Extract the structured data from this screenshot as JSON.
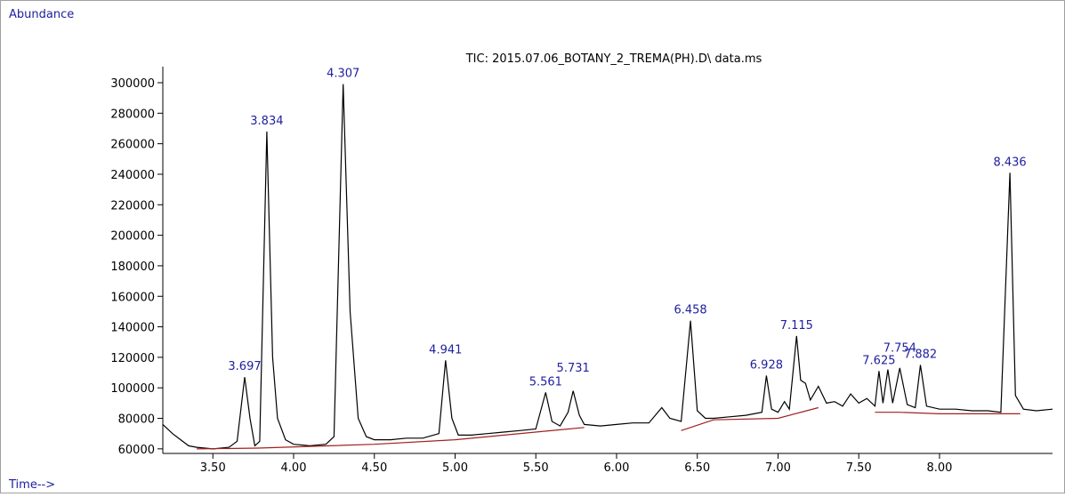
{
  "chart_data": {
    "type": "line",
    "title": "TIC: 2015.07.06_BOTANY_2_TREMA(PH).D\\ data.ms",
    "y_label": "Abundance",
    "x_label": "Time-->",
    "xlim": [
      3.19,
      8.7
    ],
    "ylim": [
      57000,
      310500
    ],
    "xticks": [
      {
        "value": 3.5,
        "label": "3.50"
      },
      {
        "value": 4.0,
        "label": "4.00"
      },
      {
        "value": 4.5,
        "label": "4.50"
      },
      {
        "value": 5.0,
        "label": "5.00"
      },
      {
        "value": 5.5,
        "label": "5.50"
      },
      {
        "value": 6.0,
        "label": "6.00"
      },
      {
        "value": 6.5,
        "label": "6.50"
      },
      {
        "value": 7.0,
        "label": "7.00"
      },
      {
        "value": 7.5,
        "label": "7.50"
      },
      {
        "value": 8.0,
        "label": "8.00"
      }
    ],
    "yticks": [
      60000,
      80000,
      100000,
      120000,
      140000,
      160000,
      180000,
      200000,
      220000,
      240000,
      260000,
      280000,
      300000
    ],
    "annotation_color": "#2020a0",
    "annotations": [
      {
        "text": "3.697",
        "x": 3.697,
        "y": 107000
      },
      {
        "text": "3.834",
        "x": 3.834,
        "y": 268000
      },
      {
        "text": "4.307",
        "x": 4.307,
        "y": 299000
      },
      {
        "text": "4.941",
        "x": 4.941,
        "y": 118000
      },
      {
        "text": "5.561",
        "x": 5.561,
        "y": 97000
      },
      {
        "text": "5.731",
        "x": 5.731,
        "y": 106000
      },
      {
        "text": "6.458",
        "x": 6.458,
        "y": 144000
      },
      {
        "text": "6.928",
        "x": 6.928,
        "y": 108000
      },
      {
        "text": "7.115",
        "x": 7.115,
        "y": 134000
      },
      {
        "text": "7.625",
        "x": 7.625,
        "y": 111000
      },
      {
        "text": "7.754",
        "x": 7.754,
        "y": 119000
      },
      {
        "text": "7.882",
        "x": 7.882,
        "y": 115000
      },
      {
        "text": "8.436",
        "x": 8.436,
        "y": 241000
      }
    ],
    "series": [
      {
        "color": "#000000",
        "x": [
          3.19,
          3.25,
          3.3,
          3.35,
          3.4,
          3.5,
          3.6,
          3.65,
          3.697,
          3.73,
          3.76,
          3.79,
          3.834,
          3.87,
          3.9,
          3.95,
          4.0,
          4.1,
          4.2,
          4.25,
          4.307,
          4.35,
          4.4,
          4.45,
          4.5,
          4.6,
          4.7,
          4.8,
          4.9,
          4.941,
          4.98,
          5.02,
          5.1,
          5.2,
          5.3,
          5.4,
          5.5,
          5.561,
          5.6,
          5.65,
          5.7,
          5.731,
          5.77,
          5.8,
          5.9,
          6.0,
          6.1,
          6.2,
          6.28,
          6.33,
          6.4,
          6.458,
          6.5,
          6.55,
          6.6,
          6.7,
          6.8,
          6.9,
          6.928,
          6.96,
          7.0,
          7.04,
          7.07,
          7.115,
          7.14,
          7.17,
          7.2,
          7.25,
          7.3,
          7.35,
          7.4,
          7.45,
          7.5,
          7.55,
          7.6,
          7.625,
          7.65,
          7.68,
          7.71,
          7.754,
          7.8,
          7.85,
          7.882,
          7.92,
          8.0,
          8.1,
          8.2,
          8.3,
          8.38,
          8.436,
          8.47,
          8.52,
          8.6,
          8.7
        ],
        "values": [
          76000,
          70000,
          66000,
          62000,
          61000,
          60000,
          61000,
          65000,
          107000,
          80000,
          62000,
          65000,
          268000,
          120000,
          80000,
          66000,
          63000,
          62000,
          63000,
          68000,
          299000,
          150000,
          80000,
          68000,
          66000,
          66000,
          67000,
          67000,
          70000,
          118000,
          80000,
          69000,
          69000,
          70000,
          71000,
          72000,
          73000,
          97000,
          78000,
          75000,
          84000,
          98000,
          82000,
          76000,
          75000,
          76000,
          77000,
          77000,
          87000,
          80000,
          78000,
          144000,
          85000,
          80000,
          80000,
          81000,
          82000,
          84000,
          108000,
          86000,
          84000,
          91000,
          86000,
          134000,
          105000,
          103000,
          92000,
          101000,
          90000,
          91000,
          88000,
          96000,
          90000,
          93000,
          88000,
          111000,
          90000,
          112000,
          90000,
          113000,
          89000,
          87000,
          115000,
          88000,
          86000,
          86000,
          85000,
          85000,
          84000,
          241000,
          95000,
          86000,
          85000,
          86000
        ]
      },
      {
        "color": "#a02020",
        "x": [
          3.4,
          3.78,
          4.5,
          5.0,
          5.8,
          null,
          6.4,
          6.6,
          7.0,
          7.25,
          null,
          7.6,
          7.75,
          8.0,
          8.3,
          8.5
        ],
        "values": [
          60000,
          60500,
          63000,
          66000,
          74000,
          null,
          72000,
          79000,
          80000,
          87000,
          null,
          84000,
          84000,
          83000,
          83000,
          83000
        ]
      }
    ]
  }
}
